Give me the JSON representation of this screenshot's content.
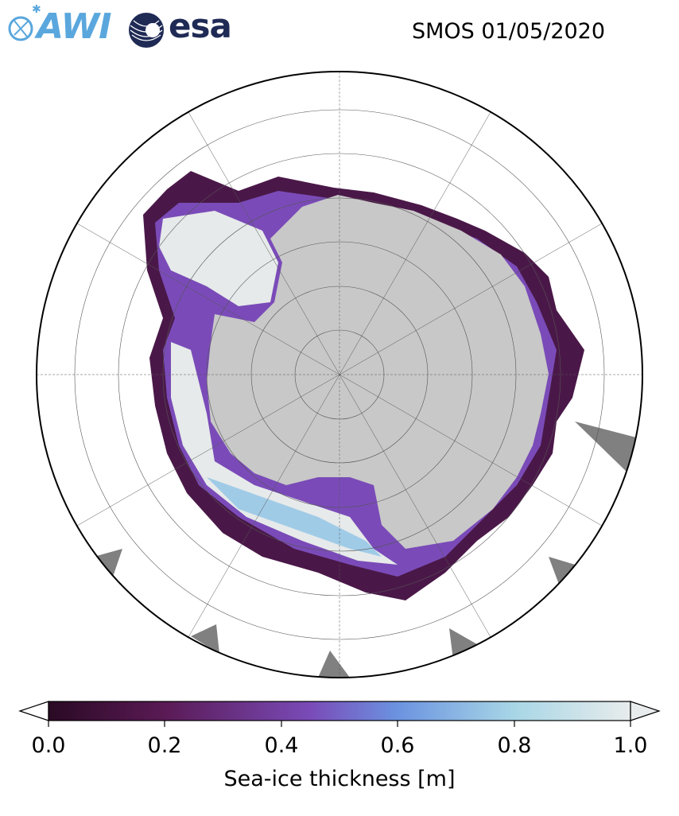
{
  "header": {
    "logo_left": "AWI",
    "logo_right": "esa",
    "title": "SMOS 01/05/2020"
  },
  "map": {
    "projection": "south-polar-stereographic",
    "continent": "Antarctica",
    "colors": {
      "land": "#c8c8c8",
      "no_data": "#808080",
      "ocean": "#ffffff"
    }
  },
  "colorbar": {
    "label": "Sea-ice thickness [m]",
    "min": 0.0,
    "max": 1.0,
    "ticks": [
      "0.0",
      "0.2",
      "0.4",
      "0.6",
      "0.8",
      "1.0"
    ],
    "tick_values": [
      0.0,
      0.2,
      0.4,
      0.6,
      0.8,
      1.0
    ],
    "extend": "both",
    "colormap": [
      "#2a0a24",
      "#5a1a55",
      "#7a4bb8",
      "#6b93e0",
      "#a8d6e6",
      "#e8ecec"
    ]
  }
}
